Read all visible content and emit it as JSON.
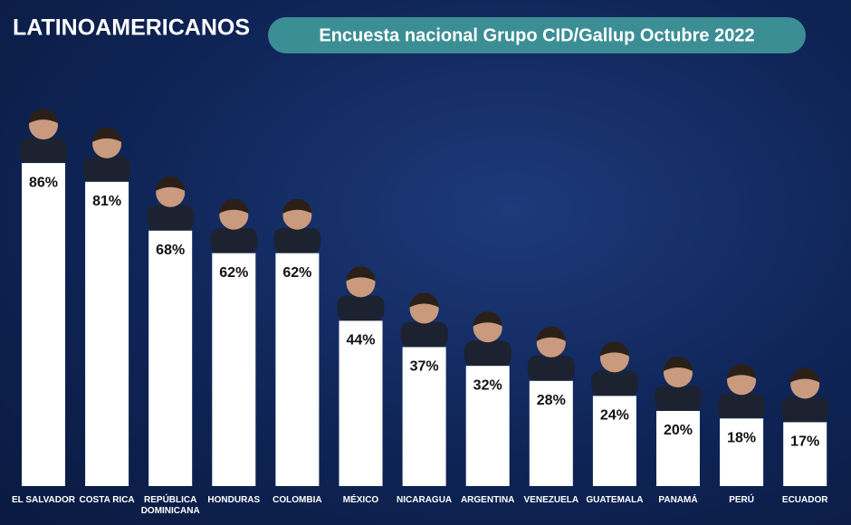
{
  "chart_data": {
    "type": "bar",
    "title": "LATINOAMERICANOS",
    "subtitle": "Encuesta nacional Grupo CID/Gallup Octubre 2022",
    "categories": [
      "EL SALVADOR",
      "COSTA RICA",
      "REPÚBLICA DOMINICANA",
      "HONDURAS",
      "COLOMBIA",
      "MÉXICO",
      "NICARAGUA",
      "ARGENTINA",
      "VENEZUELA",
      "GUATEMALA",
      "PANAMÁ",
      "PERÚ",
      "ECUADOR"
    ],
    "values": [
      86,
      81,
      68,
      62,
      62,
      44,
      37,
      32,
      28,
      24,
      20,
      18,
      17
    ],
    "value_labels": [
      "86%",
      "81%",
      "68%",
      "62%",
      "62%",
      "44%",
      "37%",
      "32%",
      "28%",
      "24%",
      "20%",
      "18%",
      "17%"
    ],
    "color": "#ffffff"
  }
}
